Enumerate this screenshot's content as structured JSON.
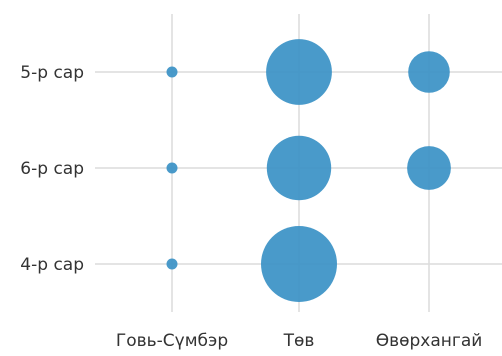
{
  "chart_data": {
    "type": "scatter",
    "title": "",
    "xlabel": "",
    "ylabel": "",
    "x_categories": [
      "Говь-Сүмбэр",
      "Төв",
      "Өвөрхангай"
    ],
    "y_categories": [
      "5-р сар",
      "6-р сар",
      "4-р сар"
    ],
    "grid": true,
    "legend": "none",
    "points": [
      {
        "x": "Говь-Сүмбэр",
        "y": "5-р сар",
        "size": 1.7
      },
      {
        "x": "Говь-Сүмбэр",
        "y": "6-р сар",
        "size": 1.0
      },
      {
        "x": "Говь-Сүмбэр",
        "y": "4-р сар",
        "size": 1.7
      },
      {
        "x": "Төв",
        "y": "5-р сар",
        "size": 90
      },
      {
        "x": "Төв",
        "y": "6-р сар",
        "size": 86
      },
      {
        "x": "Төв",
        "y": "4-р сар",
        "size": 120
      },
      {
        "x": "Өвөрхангай",
        "y": "5-р сар",
        "size": 36
      },
      {
        "x": "Өвөрхангай",
        "y": "6-р сар",
        "size": 40
      }
    ],
    "colors": {
      "bubble": "#3a91c6",
      "grid": "#dcdcdc",
      "text": "#333333"
    }
  }
}
